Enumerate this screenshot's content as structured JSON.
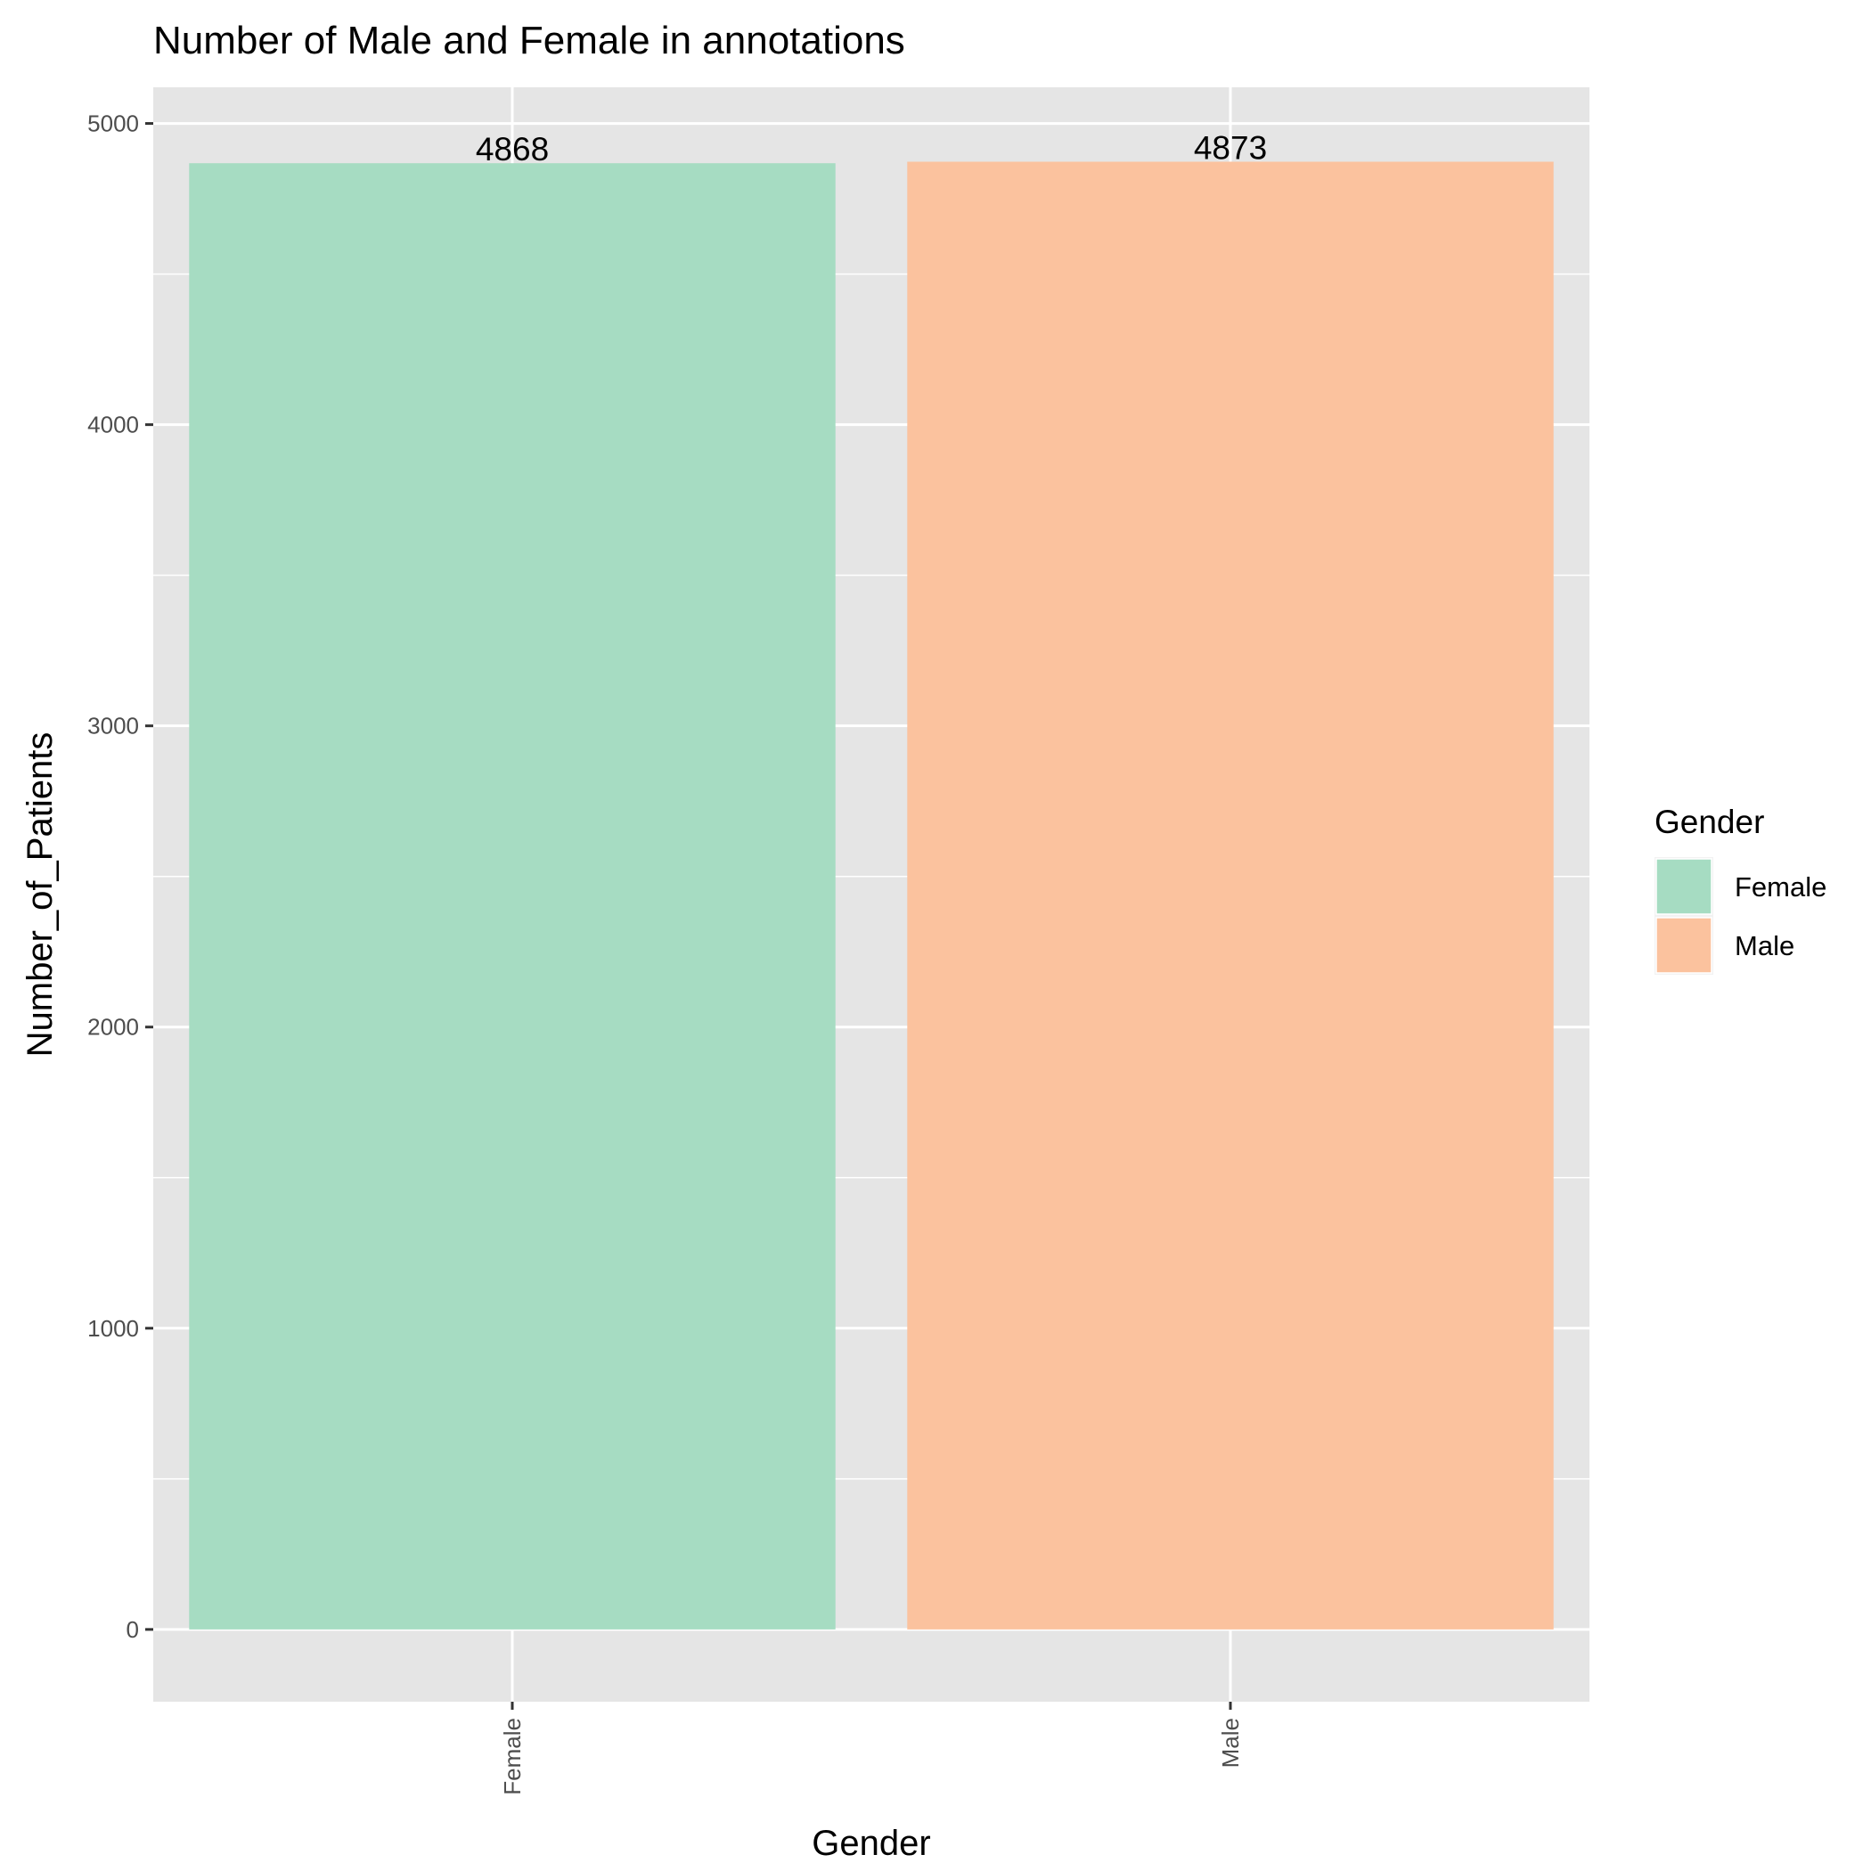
{
  "chart_data": {
    "type": "bar",
    "title": "Number of Male and Female in annotations",
    "xlabel": "Gender",
    "ylabel": "Number_of_Patients",
    "categories": [
      "Female",
      "Male"
    ],
    "values": [
      4868,
      4873
    ],
    "data_labels": [
      "4868",
      "4873"
    ],
    "colors": [
      "#a6dcc2",
      "#fbc29e"
    ],
    "ylim": [
      -240,
      5120
    ],
    "yticks": [
      0,
      1000,
      2000,
      3000,
      4000,
      5000
    ],
    "ytick_labels": [
      "0",
      "1000",
      "2000",
      "3000",
      "4000",
      "5000"
    ],
    "grid": true,
    "panel_background": "#e5e5e5",
    "grid_color": "#ffffff",
    "legend": {
      "title": "Gender",
      "position": "right",
      "items": [
        {
          "label": "Female",
          "color": "#a6dcc2"
        },
        {
          "label": "Male",
          "color": "#fbc29e"
        }
      ]
    }
  }
}
